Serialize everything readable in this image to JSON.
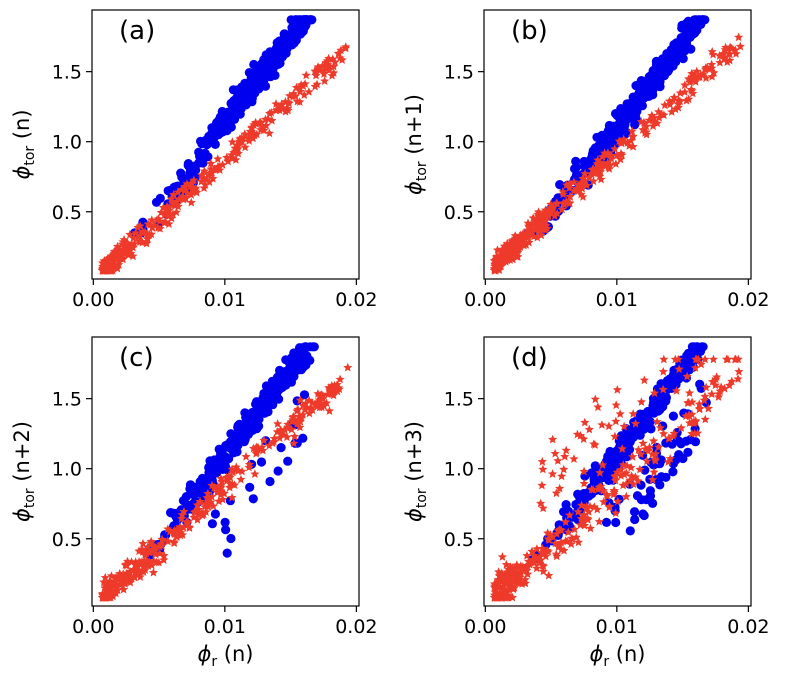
{
  "colors": {
    "blue": "#0000ee",
    "red": "#ee3a2a",
    "axis": "#000000"
  },
  "chart_data": [
    {
      "type": "scatter",
      "panel_label": "(a)",
      "ylabel": {
        "symbol": "ϕ",
        "sub": "tor",
        "suffix": " (n)"
      },
      "xlabel": null,
      "xlim": [
        -0.0001,
        0.0202
      ],
      "ylim": [
        0.02,
        1.94
      ],
      "xticks": [
        0.0,
        0.01,
        0.02
      ],
      "xtick_labels": [
        "0.00",
        "0.01",
        "0.02"
      ],
      "yticks": [
        0.5,
        1.0,
        1.5
      ],
      "ytick_labels": [
        "0.5",
        "1.0",
        "1.5"
      ],
      "series": [
        {
          "name": "blue circles",
          "marker": "circle",
          "color": "#0000ee",
          "shape": "A",
          "seed": 11
        },
        {
          "name": "red stars",
          "marker": "star",
          "color": "#ee3a2a",
          "shape": "A",
          "seed": 12
        }
      ]
    },
    {
      "type": "scatter",
      "panel_label": "(b)",
      "ylabel": {
        "symbol": "ϕ",
        "sub": "tor",
        "suffix": " (n+1)"
      },
      "xlabel": null,
      "xlim": [
        -0.0001,
        0.0202
      ],
      "ylim": [
        0.02,
        1.94
      ],
      "xticks": [
        0.0,
        0.01,
        0.02
      ],
      "xtick_labels": [
        "0.00",
        "0.01",
        "0.02"
      ],
      "yticks": [
        0.5,
        1.0,
        1.5
      ],
      "ytick_labels": [
        "0.5",
        "1.0",
        "1.5"
      ],
      "series": [
        {
          "name": "blue circles",
          "marker": "circle",
          "color": "#0000ee",
          "shape": "B",
          "seed": 21
        },
        {
          "name": "red stars",
          "marker": "star",
          "color": "#ee3a2a",
          "shape": "B",
          "seed": 22
        }
      ]
    },
    {
      "type": "scatter",
      "panel_label": "(c)",
      "ylabel": {
        "symbol": "ϕ",
        "sub": "tor",
        "suffix": " (n+2)"
      },
      "xlabel": {
        "symbol": "ϕ",
        "sub": "r",
        "suffix": " (n)"
      },
      "xlim": [
        -0.0001,
        0.0202
      ],
      "ylim": [
        0.02,
        1.94
      ],
      "xticks": [
        0.0,
        0.01,
        0.02
      ],
      "xtick_labels": [
        "0.00",
        "0.01",
        "0.02"
      ],
      "yticks": [
        0.5,
        1.0,
        1.5
      ],
      "ytick_labels": [
        "0.5",
        "1.0",
        "1.5"
      ],
      "series": [
        {
          "name": "blue circles",
          "marker": "circle",
          "color": "#0000ee",
          "shape": "C",
          "seed": 31
        },
        {
          "name": "red stars",
          "marker": "star",
          "color": "#ee3a2a",
          "shape": "C",
          "seed": 32
        }
      ]
    },
    {
      "type": "scatter",
      "panel_label": "(d)",
      "ylabel": {
        "symbol": "ϕ",
        "sub": "tor",
        "suffix": " (n+3)"
      },
      "xlabel": {
        "symbol": "ϕ",
        "sub": "r",
        "suffix": " (n)"
      },
      "xlim": [
        -0.0001,
        0.0202
      ],
      "ylim": [
        0.02,
        1.94
      ],
      "xticks": [
        0.0,
        0.01,
        0.02
      ],
      "xtick_labels": [
        "0.00",
        "0.01",
        "0.02"
      ],
      "yticks": [
        0.5,
        1.0,
        1.5
      ],
      "ytick_labels": [
        "0.5",
        "1.0",
        "1.5"
      ],
      "series": [
        {
          "name": "blue circles",
          "marker": "circle",
          "color": "#0000ee",
          "shape": "D",
          "seed": 41
        },
        {
          "name": "red stars",
          "marker": "star",
          "color": "#ee3a2a",
          "shape": "D",
          "seed": 42
        }
      ]
    }
  ]
}
